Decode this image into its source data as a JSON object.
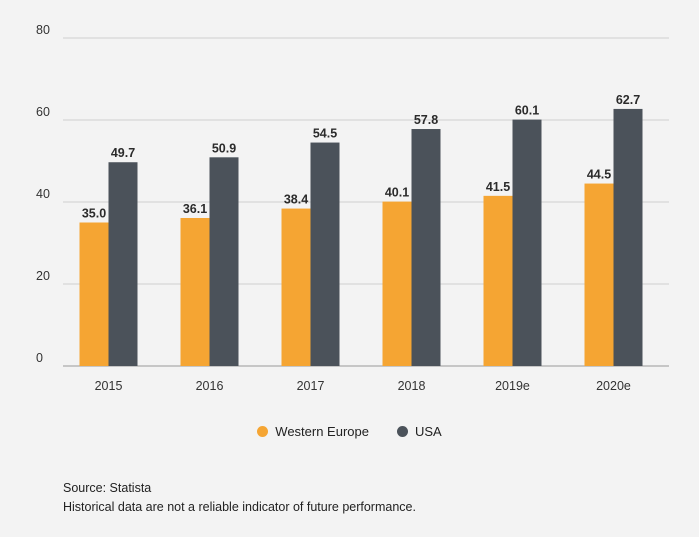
{
  "chart_data": {
    "type": "bar",
    "title": "",
    "xlabel": "",
    "ylabel": "",
    "categories": [
      "2015",
      "2016",
      "2017",
      "2018",
      "2019e",
      "2020e"
    ],
    "series": [
      {
        "name": "Western Europe",
        "color": "#f5a533",
        "values": [
          35.0,
          36.1,
          38.4,
          40.1,
          41.5,
          44.5
        ],
        "labels": [
          "35.0",
          "36.1",
          "38.4",
          "40.1",
          "41.5",
          "44.5"
        ]
      },
      {
        "name": "USA",
        "color": "#4b525a",
        "values": [
          49.7,
          50.9,
          54.5,
          57.8,
          60.1,
          62.7
        ],
        "labels": [
          "49.7",
          "50.9",
          "54.5",
          "57.8",
          "60.1",
          "62.7"
        ]
      }
    ],
    "ylim": [
      0,
      80
    ],
    "yticks": [
      "0",
      "20",
      "40",
      "60",
      "80"
    ],
    "ytick_values": [
      0,
      20,
      40,
      60,
      80
    ],
    "grid": true,
    "legend_position": "bottom-center"
  },
  "legend": {
    "items": [
      {
        "label": "Western Europe",
        "color": "#f5a533"
      },
      {
        "label": "USA",
        "color": "#4b525a"
      }
    ]
  },
  "footer": {
    "source": "Source: Statista",
    "disclaimer": "Historical data are not a reliable indicator of future performance."
  }
}
